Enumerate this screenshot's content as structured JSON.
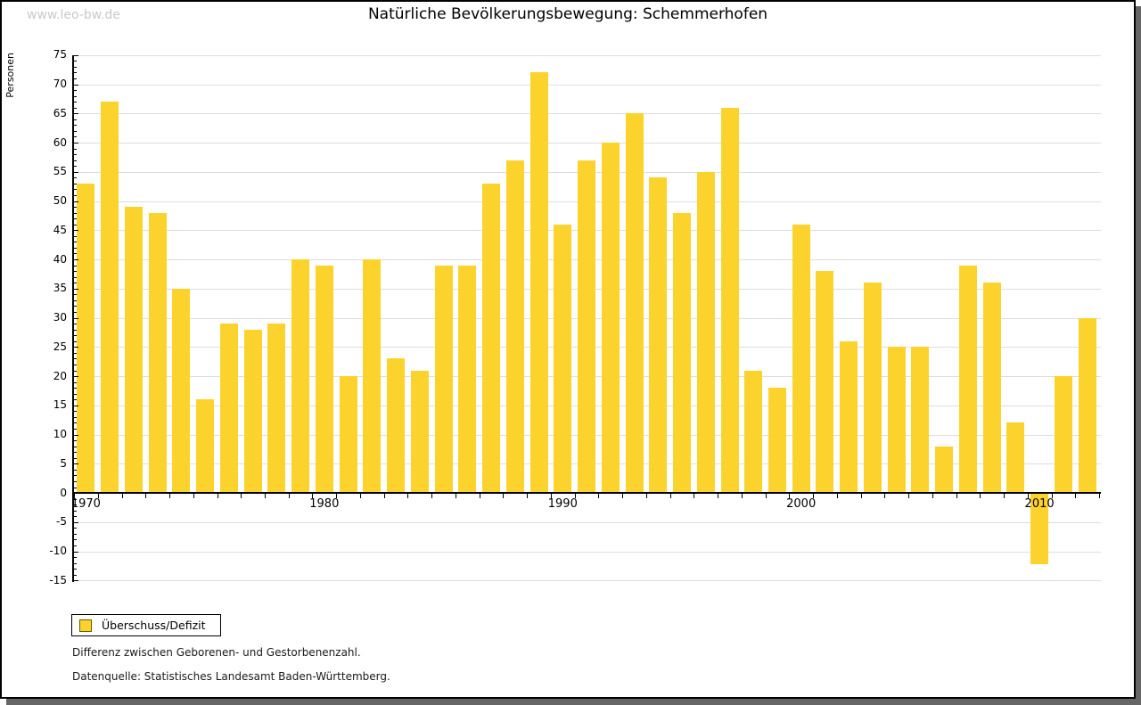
{
  "watermark": "www.leo-bw.de",
  "chart_data": {
    "type": "bar",
    "title": "Natürliche Bevölkerungsbewegung: Schemmerhofen",
    "ylabel": "Personen",
    "xlabel": "",
    "legend_label": "Überschuss/Defizit",
    "legend_position": "bottom-left",
    "grid": true,
    "ylim": [
      -15,
      75
    ],
    "ytick_step": 5,
    "xtick_labels": [
      "1970",
      "1980",
      "1990",
      "2000",
      "2010"
    ],
    "bar_color": "#FCD32C",
    "categories": [
      1970,
      1971,
      1972,
      1973,
      1974,
      1975,
      1976,
      1977,
      1978,
      1979,
      1980,
      1981,
      1982,
      1983,
      1984,
      1985,
      1986,
      1987,
      1988,
      1989,
      1990,
      1991,
      1992,
      1993,
      1994,
      1995,
      1996,
      1997,
      1998,
      1999,
      2000,
      2001,
      2002,
      2003,
      2004,
      2005,
      2006,
      2007,
      2008,
      2009,
      2010,
      2011,
      2012
    ],
    "values": [
      53,
      67,
      49,
      48,
      35,
      16,
      29,
      28,
      29,
      40,
      39,
      20,
      40,
      23,
      21,
      39,
      39,
      53,
      57,
      72,
      46,
      57,
      60,
      65,
      54,
      48,
      55,
      66,
      21,
      18,
      46,
      38,
      26,
      36,
      25,
      25,
      8,
      39,
      36,
      12,
      -12,
      20,
      30
    ]
  },
  "notes": {
    "line1": "Differenz zwischen Geborenen- und Gestorbenenzahl.",
    "line2": "Datenquelle: Statistisches Landesamt Baden-Württemberg."
  }
}
